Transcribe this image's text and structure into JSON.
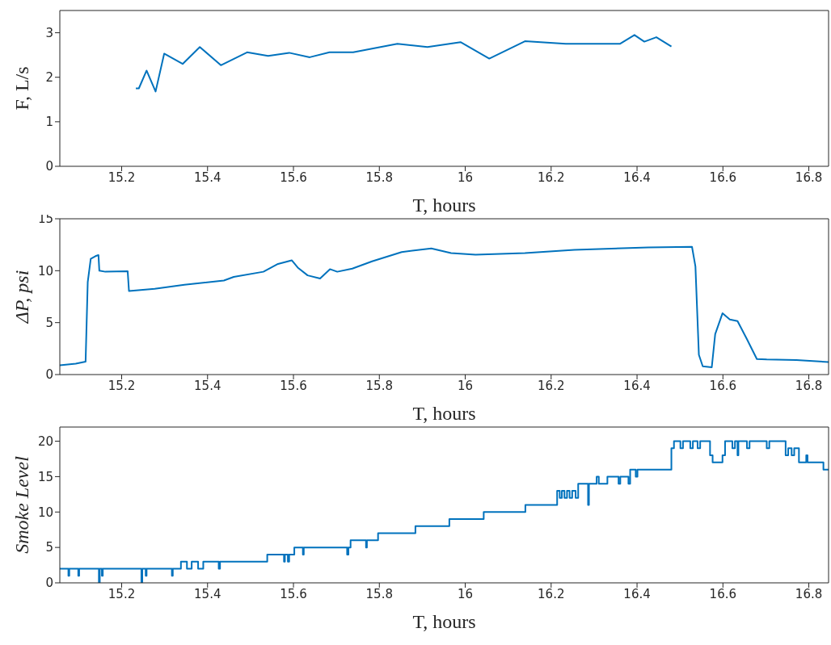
{
  "chart_data": [
    {
      "type": "line",
      "xlabel": "T, hours",
      "ylabel": "F, L/s",
      "xlim": [
        15.056,
        16.846
      ],
      "xticks": [
        15.2,
        15.4,
        15.6,
        15.8,
        16,
        16.2,
        16.4,
        16.6,
        16.8
      ],
      "ylim": [
        0,
        3.5
      ],
      "yticks": [
        0,
        1,
        2,
        3
      ],
      "grid": false,
      "marker": "none",
      "line_style": "solid",
      "series": [
        {
          "color": "#0072bd",
          "x": [
            15.233,
            15.24,
            15.258,
            15.279,
            15.299,
            15.342,
            15.382,
            15.431,
            15.492,
            15.541,
            15.59,
            15.638,
            15.684,
            15.739,
            15.842,
            15.912,
            15.989,
            16.056,
            16.139,
            16.234,
            16.36,
            16.394,
            16.417,
            16.445,
            16.48
          ],
          "values": [
            1.75,
            1.75,
            2.15,
            1.68,
            2.53,
            2.3,
            2.68,
            2.27,
            2.56,
            2.48,
            2.55,
            2.45,
            2.56,
            2.56,
            2.75,
            2.68,
            2.79,
            2.42,
            2.81,
            2.75,
            2.75,
            2.95,
            2.8,
            2.9,
            2.69
          ]
        }
      ]
    },
    {
      "type": "line",
      "xlabel": "T, hours",
      "ylabel": "ΔP, psi",
      "xlim": [
        15.056,
        16.846
      ],
      "xticks": [
        15.2,
        15.4,
        15.6,
        15.8,
        16,
        16.2,
        16.4,
        16.6,
        16.8
      ],
      "ylim": [
        0,
        15
      ],
      "yticks": [
        0,
        5,
        10,
        15
      ],
      "grid": false,
      "marker": "none",
      "line_style": "solid",
      "series": [
        {
          "color": "#0072bd",
          "x": [
            15.056,
            15.093,
            15.116,
            15.121,
            15.128,
            15.139,
            15.146,
            15.148,
            15.162,
            15.214,
            15.217,
            15.277,
            15.346,
            15.438,
            15.461,
            15.53,
            15.564,
            15.596,
            15.61,
            15.633,
            15.662,
            15.685,
            15.702,
            15.737,
            15.783,
            15.852,
            15.921,
            15.967,
            16.024,
            16.139,
            16.254,
            16.426,
            16.528,
            16.536,
            16.544,
            16.553,
            16.574,
            16.582,
            16.599,
            16.616,
            16.634,
            16.656,
            16.679,
            16.702,
            16.771,
            16.846
          ],
          "values": [
            0.9,
            1.05,
            1.25,
            8.9,
            11.15,
            11.4,
            11.5,
            10,
            9.9,
            9.95,
            8.05,
            8.25,
            8.65,
            9.05,
            9.4,
            9.9,
            10.65,
            11,
            10.3,
            9.55,
            9.25,
            10.15,
            9.9,
            10.2,
            10.9,
            11.8,
            12.15,
            11.7,
            11.55,
            11.7,
            12,
            12.25,
            12.3,
            10.4,
            1.9,
            0.8,
            0.7,
            3.9,
            5.9,
            5.3,
            5.15,
            3.4,
            1.5,
            1.45,
            1.4,
            1.2
          ]
        }
      ]
    },
    {
      "type": "step",
      "xlabel": "T, hours",
      "ylabel": "Smoke Level",
      "xlim": [
        15.056,
        16.846
      ],
      "xticks": [
        15.2,
        15.4,
        15.6,
        15.8,
        16,
        16.2,
        16.4,
        16.6,
        16.8
      ],
      "ylim": [
        0,
        22
      ],
      "yticks": [
        0,
        5,
        10,
        15,
        20
      ],
      "grid": false,
      "marker": "none",
      "line_style": "solid",
      "series": [
        {
          "color": "#0072bd",
          "x": [
            15.056,
            15.076,
            15.078,
            15.099,
            15.101,
            15.147,
            15.149,
            15.154,
            15.156,
            15.246,
            15.248,
            15.256,
            15.258,
            15.317,
            15.319,
            15.338,
            15.352,
            15.363,
            15.378,
            15.39,
            15.426,
            15.429,
            15.539,
            15.578,
            15.58,
            15.587,
            15.59,
            15.602,
            15.622,
            15.624,
            15.725,
            15.728,
            15.733,
            15.769,
            15.771,
            15.797,
            15.884,
            15.963,
            16.043,
            16.14,
            16.214,
            16.22,
            16.225,
            16.231,
            16.237,
            16.243,
            16.249,
            16.257,
            16.263,
            16.286,
            16.288,
            16.306,
            16.311,
            16.331,
            16.357,
            16.361,
            16.38,
            16.384,
            16.397,
            16.401,
            16.48,
            16.486,
            16.501,
            16.507,
            16.524,
            16.53,
            16.541,
            16.547,
            16.57,
            16.576,
            16.599,
            16.605,
            16.622,
            16.628,
            16.634,
            16.636,
            16.656,
            16.662,
            16.702,
            16.708,
            16.746,
            16.752,
            16.76,
            16.766,
            16.777,
            16.794,
            16.797,
            16.834,
            16.846
          ],
          "values": [
            2,
            1,
            2,
            1,
            2,
            0,
            2,
            1,
            2,
            0,
            2,
            1,
            2,
            1,
            2,
            3,
            2,
            3,
            2,
            3,
            2,
            3,
            4,
            3,
            4,
            3,
            4,
            5,
            4,
            5,
            4,
            5,
            6,
            5,
            6,
            7,
            8,
            9,
            10,
            11,
            13,
            12,
            13,
            12,
            13,
            12,
            13,
            12,
            14,
            11,
            14,
            15,
            14,
            15,
            14,
            15,
            14,
            16,
            15,
            16,
            19,
            20,
            19,
            20,
            19,
            20,
            19,
            20,
            18,
            17,
            18,
            20,
            19,
            20,
            18,
            20,
            19,
            20,
            19,
            20,
            18,
            19,
            18,
            19,
            17,
            18,
            17,
            16,
            16
          ]
        }
      ]
    }
  ]
}
